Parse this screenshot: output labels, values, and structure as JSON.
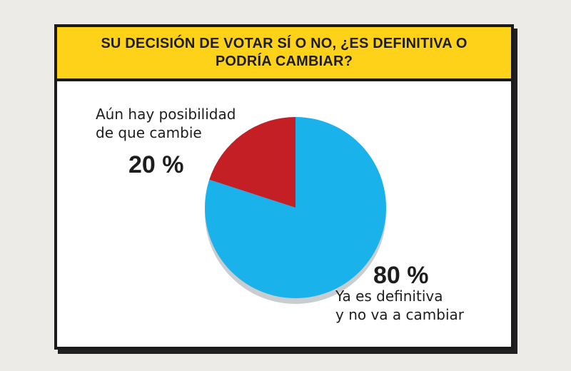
{
  "chart_data": {
    "type": "pie",
    "title": "SU DECISIÓN DE VOTAR SÍ O NO, ¿ES DEFINITIVA O PODRÍA CAMBIAR?",
    "title_lines": [
      "SU DECISIÓN DE VOTAR SÍ O NO, ¿ES DEFINITIVA O",
      "PODRÍA CAMBIAR?"
    ],
    "slices": [
      {
        "label_lines": [
          "Ya es definitiva",
          "y no va a cambiar"
        ],
        "value": 80,
        "display": "80 %",
        "color": "#1ab2ea"
      },
      {
        "label_lines": [
          "Aún hay posibilidad",
          "de que cambie"
        ],
        "value": 20,
        "display": "20 %",
        "color": "#c41f24"
      }
    ]
  },
  "colors": {
    "header_bg": "#ffd21a",
    "border": "#1b1b1b",
    "pie_depth": "#c9cdd0"
  }
}
